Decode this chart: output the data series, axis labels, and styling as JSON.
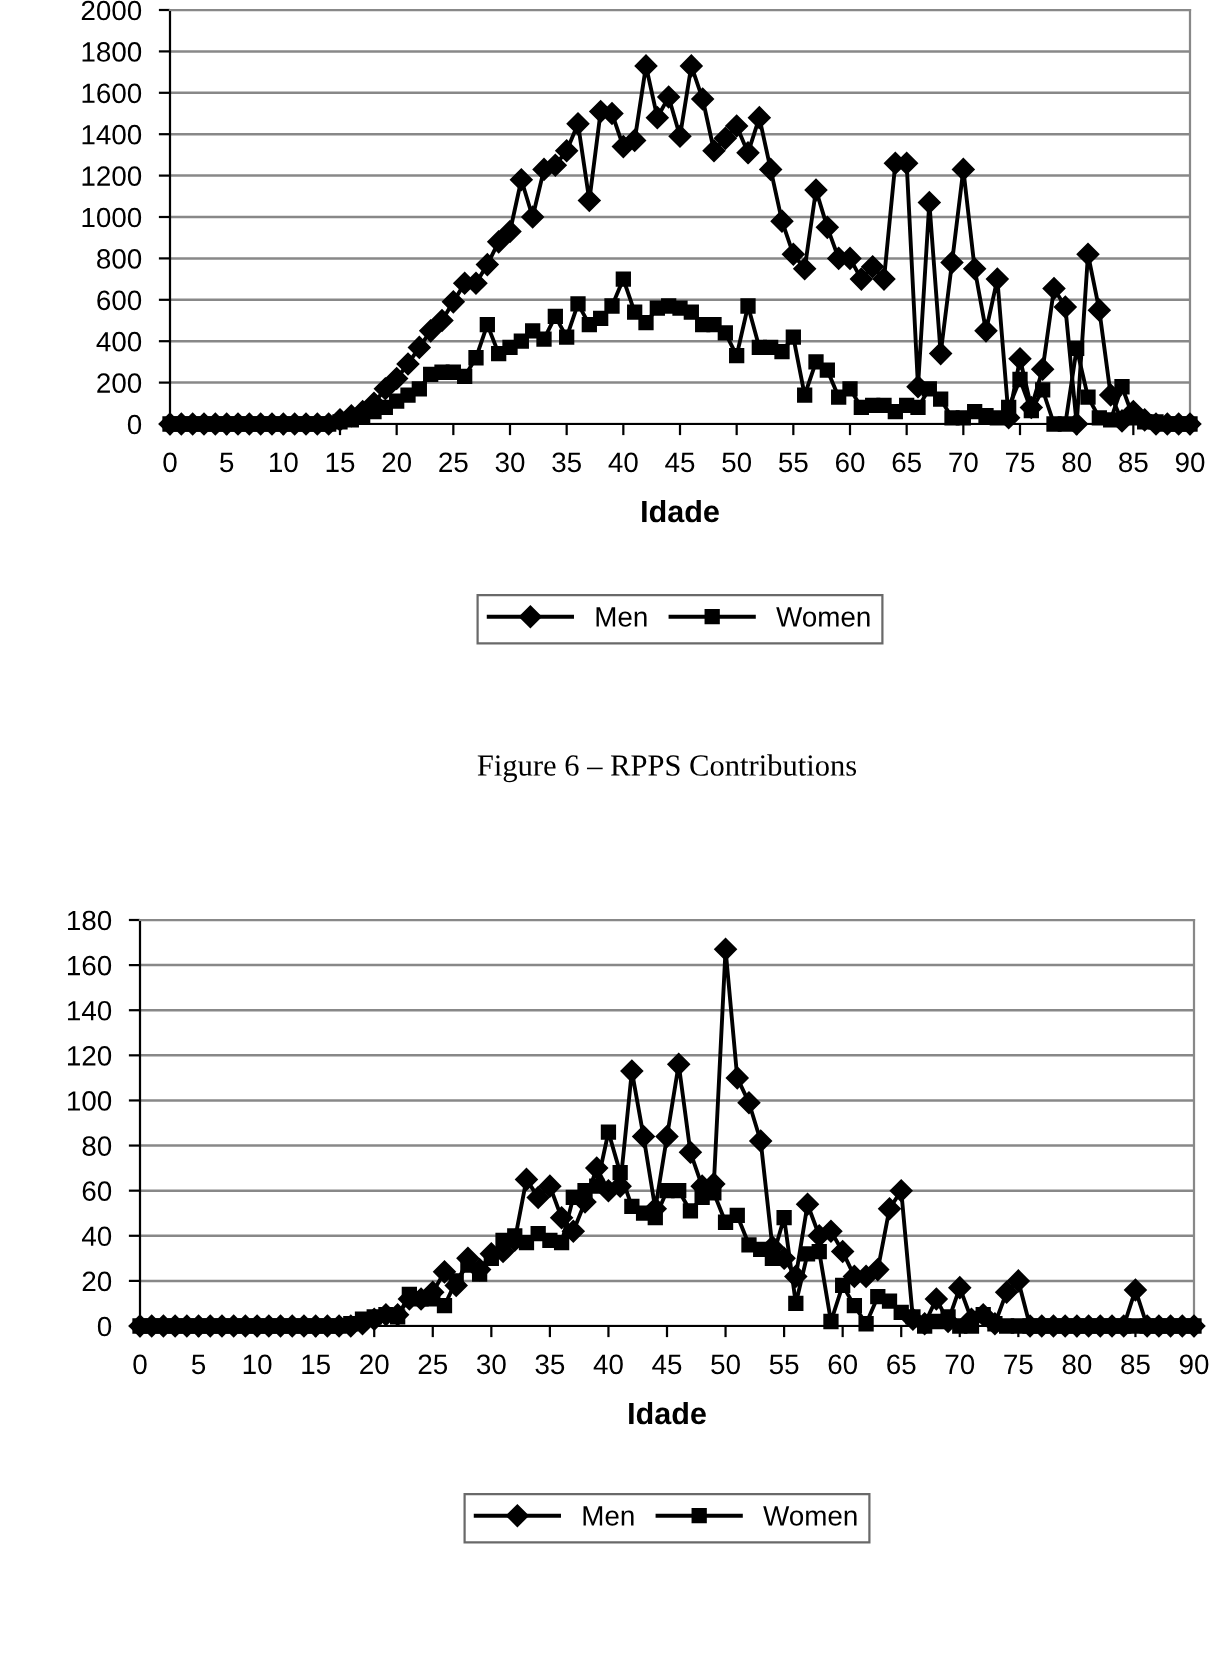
{
  "chart_data": [
    {
      "type": "line",
      "xlabel": "Idade",
      "x": [
        0,
        1,
        2,
        3,
        4,
        5,
        6,
        7,
        8,
        9,
        10,
        11,
        12,
        13,
        14,
        15,
        16,
        17,
        18,
        19,
        20,
        21,
        22,
        23,
        24,
        25,
        26,
        27,
        28,
        29,
        30,
        31,
        32,
        33,
        34,
        35,
        36,
        37,
        38,
        39,
        40,
        41,
        42,
        43,
        44,
        45,
        46,
        47,
        48,
        49,
        50,
        51,
        52,
        53,
        54,
        55,
        56,
        57,
        58,
        59,
        60,
        61,
        62,
        63,
        64,
        65,
        66,
        67,
        68,
        69,
        70,
        71,
        72,
        73,
        74,
        75,
        76,
        77,
        78,
        79,
        80,
        81,
        82,
        83,
        84,
        85,
        86,
        87,
        88,
        89,
        90
      ],
      "xlim": [
        0,
        90
      ],
      "xticks": [
        0,
        5,
        10,
        15,
        20,
        25,
        30,
        35,
        40,
        45,
        50,
        55,
        60,
        65,
        70,
        75,
        80,
        85,
        90
      ],
      "ylim": [
        0,
        2000
      ],
      "yticks": [
        0,
        200,
        400,
        600,
        800,
        1000,
        1200,
        1400,
        1600,
        1800,
        2000
      ],
      "grid": "y",
      "legend": "bottom",
      "series": [
        {
          "name": "Men",
          "color": "#000000",
          "marker": "diamond",
          "values": [
            0,
            0,
            0,
            0,
            0,
            0,
            0,
            0,
            0,
            0,
            0,
            0,
            0,
            0,
            0,
            20,
            40,
            60,
            100,
            170,
            220,
            290,
            370,
            450,
            500,
            590,
            680,
            680,
            770,
            880,
            930,
            1180,
            1000,
            1230,
            1250,
            1320,
            1450,
            1080,
            1510,
            1500,
            1340,
            1370,
            1730,
            1480,
            1580,
            1390,
            1730,
            1570,
            1320,
            1380,
            1440,
            1310,
            1480,
            1230,
            980,
            820,
            750,
            1130,
            950,
            800,
            800,
            700,
            760,
            700,
            1260,
            1260,
            180,
            1070,
            340,
            780,
            1230,
            750,
            450,
            700,
            30,
            315,
            80,
            265,
            655,
            565,
            0,
            820,
            550,
            140,
            15,
            60,
            20,
            0,
            0,
            0,
            0
          ]
        },
        {
          "name": "Women",
          "color": "#000000",
          "marker": "square",
          "values": [
            0,
            0,
            0,
            0,
            0,
            0,
            0,
            0,
            0,
            0,
            0,
            0,
            0,
            0,
            0,
            10,
            20,
            40,
            60,
            80,
            110,
            140,
            170,
            240,
            250,
            250,
            230,
            320,
            480,
            340,
            370,
            400,
            450,
            410,
            520,
            420,
            580,
            480,
            510,
            570,
            700,
            540,
            490,
            560,
            570,
            560,
            540,
            480,
            480,
            440,
            330,
            570,
            370,
            370,
            350,
            420,
            140,
            300,
            260,
            130,
            170,
            80,
            90,
            90,
            60,
            90,
            80,
            170,
            120,
            30,
            30,
            60,
            40,
            30,
            80,
            215,
            65,
            165,
            0,
            0,
            365,
            130,
            30,
            20,
            180,
            30,
            10,
            10,
            0,
            0,
            0
          ]
        }
      ]
    },
    {
      "type": "line",
      "title": "Figure 6 – RPPS Contributions",
      "xlabel": "Idade",
      "x": [
        0,
        1,
        2,
        3,
        4,
        5,
        6,
        7,
        8,
        9,
        10,
        11,
        12,
        13,
        14,
        15,
        16,
        17,
        18,
        19,
        20,
        21,
        22,
        23,
        24,
        25,
        26,
        27,
        28,
        29,
        30,
        31,
        32,
        33,
        34,
        35,
        36,
        37,
        38,
        39,
        40,
        41,
        42,
        43,
        44,
        45,
        46,
        47,
        48,
        49,
        50,
        51,
        52,
        53,
        54,
        55,
        56,
        57,
        58,
        59,
        60,
        61,
        62,
        63,
        64,
        65,
        66,
        67,
        68,
        69,
        70,
        71,
        72,
        73,
        74,
        75,
        76,
        77,
        78,
        79,
        80,
        81,
        82,
        83,
        84,
        85,
        86,
        87,
        88,
        89,
        90
      ],
      "xlim": [
        0,
        90
      ],
      "xticks": [
        0,
        5,
        10,
        15,
        20,
        25,
        30,
        35,
        40,
        45,
        50,
        55,
        60,
        65,
        70,
        75,
        80,
        85,
        90
      ],
      "ylim": [
        0,
        180
      ],
      "yticks": [
        0,
        20,
        40,
        60,
        80,
        100,
        120,
        140,
        160,
        180
      ],
      "grid": "y",
      "legend": "bottom",
      "series": [
        {
          "name": "Men",
          "color": "#000000",
          "marker": "diamond",
          "values": [
            0,
            0,
            0,
            0,
            0,
            0,
            0,
            0,
            0,
            0,
            0,
            0,
            0,
            0,
            0,
            0,
            0,
            0,
            0,
            1,
            3,
            5,
            5,
            12,
            12,
            15,
            24,
            18,
            30,
            25,
            32,
            33,
            38,
            65,
            57,
            62,
            48,
            42,
            55,
            70,
            60,
            62,
            113,
            84,
            52,
            84,
            116,
            77,
            62,
            63,
            167,
            110,
            99,
            82,
            35,
            30,
            22,
            54,
            40,
            42,
            33,
            22,
            22,
            25,
            52,
            60,
            3,
            1,
            12,
            2,
            17,
            3,
            5,
            1,
            15,
            20,
            0,
            0,
            0,
            0,
            0,
            0,
            0,
            0,
            0,
            16,
            0,
            0,
            0,
            0,
            0
          ]
        },
        {
          "name": "Women",
          "color": "#000000",
          "marker": "square",
          "values": [
            0,
            0,
            0,
            0,
            0,
            0,
            0,
            0,
            0,
            0,
            0,
            0,
            0,
            0,
            0,
            0,
            0,
            0,
            1,
            3,
            4,
            5,
            4,
            14,
            12,
            12,
            9,
            20,
            27,
            23,
            30,
            38,
            40,
            37,
            41,
            38,
            37,
            57,
            60,
            62,
            86,
            68,
            53,
            50,
            48,
            60,
            60,
            51,
            57,
            59,
            46,
            49,
            36,
            34,
            30,
            48,
            10,
            32,
            33,
            2,
            18,
            9,
            1,
            13,
            11,
            6,
            4,
            0,
            2,
            4,
            0,
            0,
            5,
            1,
            0,
            0,
            0,
            0,
            0,
            0,
            0,
            0,
            0,
            0,
            0,
            0,
            0,
            0,
            0,
            0,
            0
          ]
        }
      ]
    }
  ]
}
